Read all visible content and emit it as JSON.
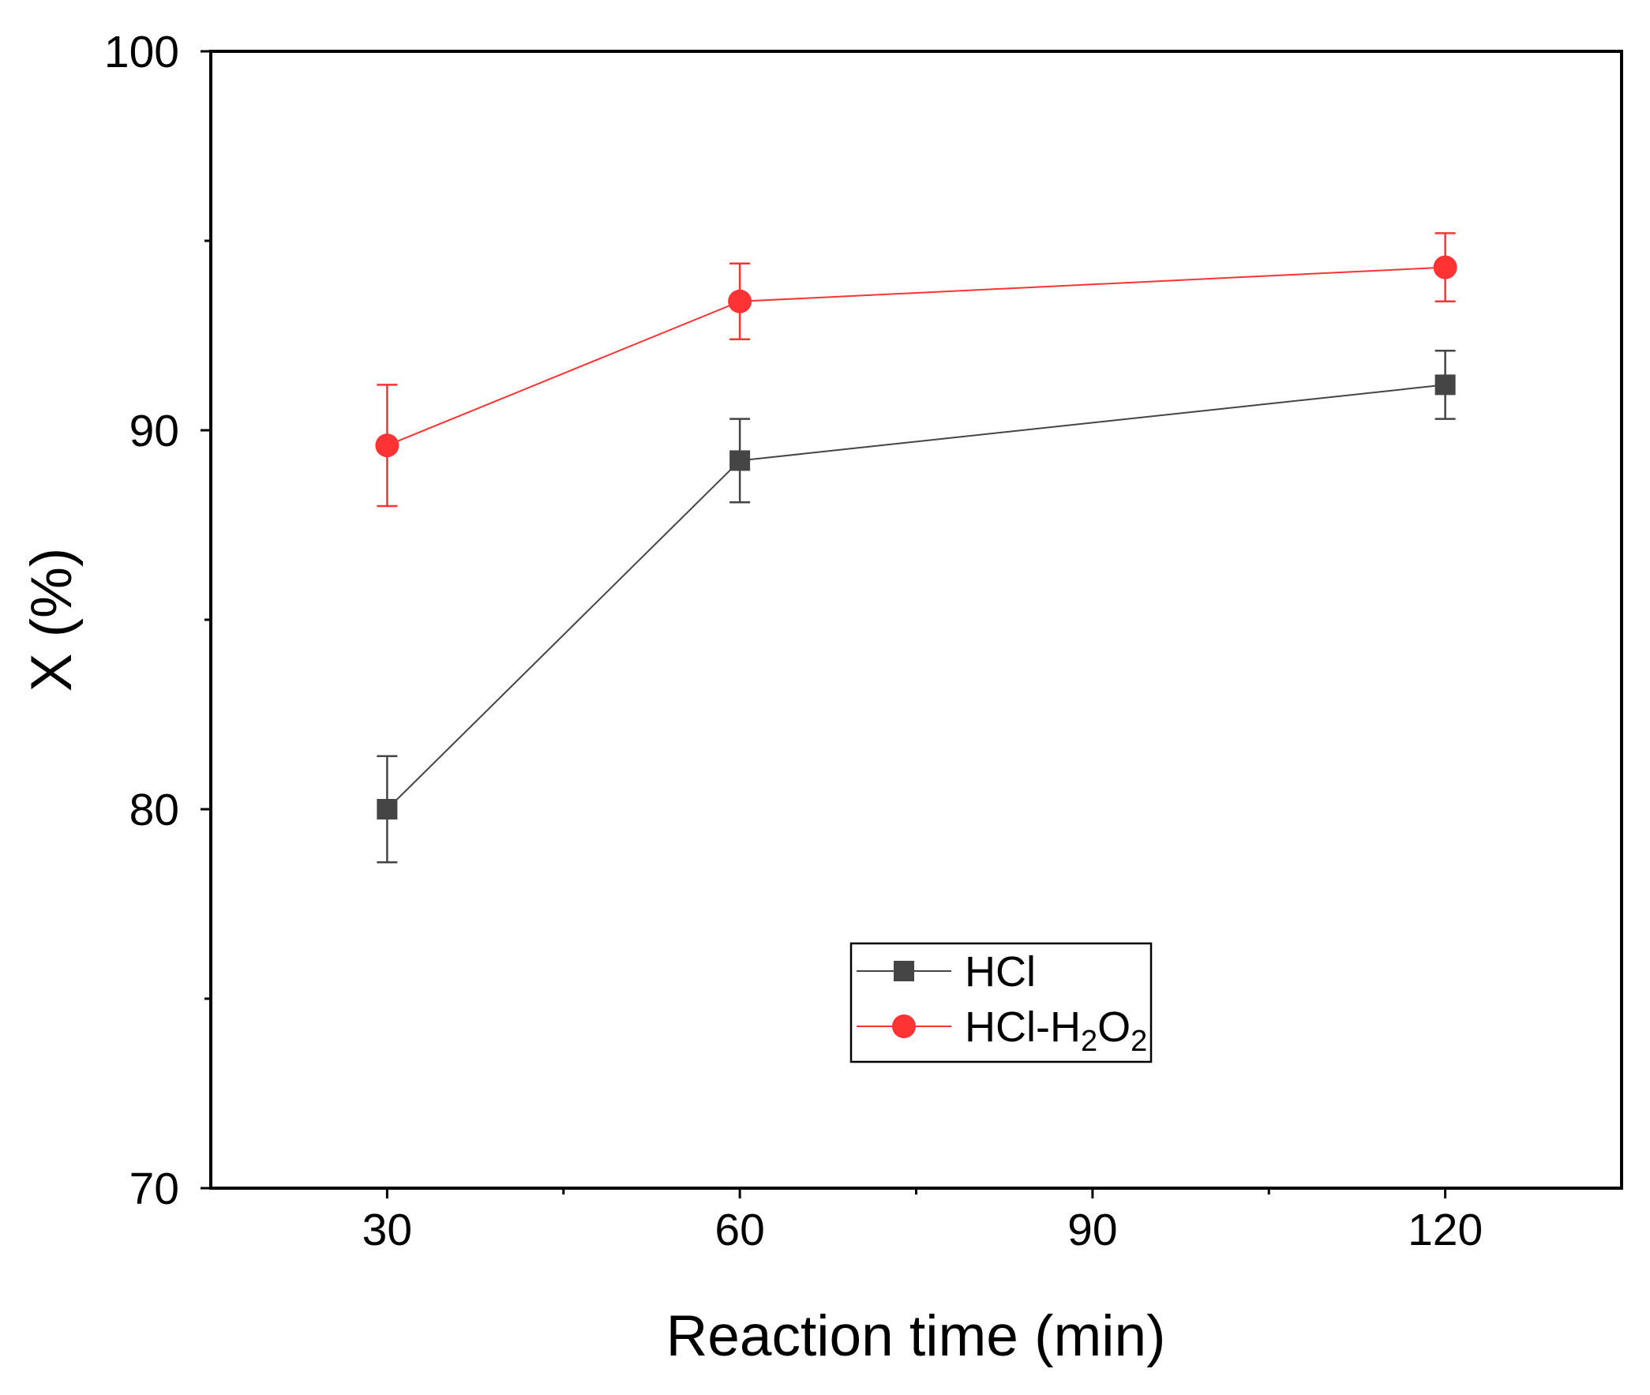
{
  "chart_data": {
    "type": "line",
    "title": "",
    "xlabel": "Reaction time (min)",
    "ylabel": "X (%)",
    "x": [
      30,
      60,
      90,
      120
    ],
    "xlim": [
      15,
      135
    ],
    "ylim": [
      70,
      100
    ],
    "xticks": [
      30,
      60,
      90,
      120
    ],
    "yticks": [
      70,
      80,
      90,
      100
    ],
    "grid": false,
    "legend_position": "lower-center",
    "series": [
      {
        "name": "HCl",
        "legend_parts": [
          "HCl"
        ],
        "marker": "square",
        "color": "#454545",
        "x": [
          30,
          60,
          120
        ],
        "values": [
          80.0,
          89.2,
          91.2
        ],
        "errors": [
          1.4,
          1.1,
          0.9
        ]
      },
      {
        "name": "HCl-H2O2",
        "legend_parts": [
          "HCl-H",
          "2",
          "O",
          "2"
        ],
        "marker": "circle",
        "color": "#ff3333",
        "x": [
          30,
          60,
          120
        ],
        "values": [
          89.6,
          93.4,
          94.3
        ],
        "errors": [
          1.6,
          1.0,
          0.9
        ]
      }
    ]
  }
}
